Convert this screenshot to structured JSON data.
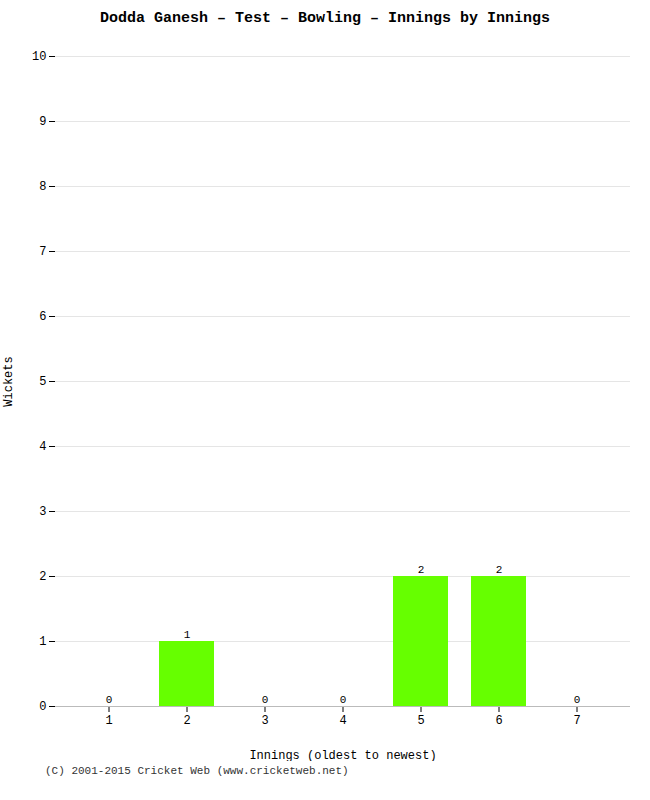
{
  "chart_data": {
    "type": "bar",
    "title": "Dodda Ganesh – Test – Bowling – Innings by Innings",
    "xlabel": "Innings (oldest to newest)",
    "ylabel": "Wickets",
    "categories": [
      1,
      2,
      3,
      4,
      5,
      6,
      7
    ],
    "values": [
      0,
      1,
      0,
      0,
      2,
      2,
      0
    ],
    "color": "#66ff00",
    "ylim": [
      0,
      10
    ],
    "yticks": [
      0,
      1,
      2,
      3,
      4,
      5,
      6,
      7,
      8,
      9,
      10
    ],
    "grid": true,
    "data_labels": true,
    "footer": "(C) 2001-2015 Cricket Web (www.cricketweb.net)"
  }
}
